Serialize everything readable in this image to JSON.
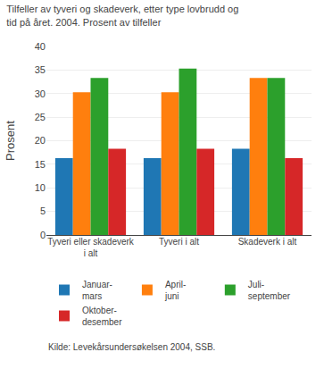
{
  "chart_data": {
    "type": "bar",
    "title": "Tilfeller av tyveri og skadeverk, etter type lovbrudd og\ntid på året. 2004. Prosent av tilfeller",
    "ylabel": "Prosent",
    "source": "Kilde: Levekårsundersøkelsen 2004, SSB.",
    "categories": [
      "Tyveri eller skadeverk\ni alt",
      "Tyveri i alt",
      "Skadeverk i alt"
    ],
    "series": [
      {
        "name": "Januar-\nmars",
        "values": [
          16.3,
          16.3,
          18.3
        ]
      },
      {
        "name": "April-\njuni",
        "values": [
          30.3,
          30.3,
          33.3
        ]
      },
      {
        "name": "Juli-\nseptember",
        "values": [
          33.3,
          35.3,
          33.3
        ]
      },
      {
        "name": "Oktober-\ndesember",
        "values": [
          18.3,
          18.3,
          16.3
        ]
      }
    ],
    "ylim": [
      0,
      40
    ],
    "yticks": [
      0,
      5,
      10,
      15,
      20,
      25,
      30,
      35,
      40
    ],
    "grid": true
  }
}
